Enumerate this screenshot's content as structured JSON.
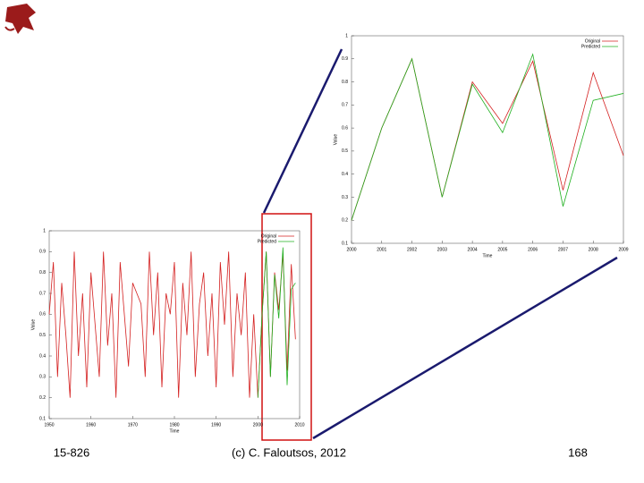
{
  "chart_data": [
    {
      "type": "line",
      "xlabel": "Time",
      "ylabel": "Value",
      "x": [
        2000,
        2001,
        2002,
        2003,
        2004,
        2005,
        2006,
        2007,
        2008,
        2009
      ],
      "series": [
        {
          "name": "Original",
          "color": "#d42020",
          "values": [
            0.2,
            0.6,
            0.9,
            0.3,
            0.8,
            0.62,
            0.89,
            0.33,
            0.84,
            0.48
          ]
        },
        {
          "name": "Predicted",
          "color": "#20b020",
          "values": [
            0.2,
            0.6,
            0.9,
            0.3,
            0.79,
            0.58,
            0.92,
            0.26,
            0.72,
            0.75
          ]
        }
      ],
      "xlim": [
        2000,
        2009
      ],
      "xticks": [
        2000,
        2001,
        2002,
        2003,
        2004,
        2005,
        2006,
        2007,
        2008,
        2009
      ],
      "ylim": [
        0.1,
        1
      ],
      "yticks": [
        0.1,
        0.2,
        0.3,
        0.4,
        0.5,
        0.6,
        0.7,
        0.8,
        0.9,
        1
      ],
      "legend": "upper right"
    },
    {
      "type": "line",
      "xlabel": "Time",
      "ylabel": "Value",
      "x": [
        1950,
        1951,
        1952,
        1953,
        1954,
        1955,
        1956,
        1957,
        1958,
        1959,
        1960,
        1961,
        1962,
        1963,
        1964,
        1965,
        1966,
        1967,
        1968,
        1969,
        1970,
        1971,
        1972,
        1973,
        1974,
        1975,
        1976,
        1977,
        1978,
        1979,
        1980,
        1981,
        1982,
        1983,
        1984,
        1985,
        1986,
        1987,
        1988,
        1989,
        1990,
        1991,
        1992,
        1993,
        1994,
        1995,
        1996,
        1997,
        1998,
        1999,
        2000,
        2001,
        2002,
        2003,
        2004,
        2005,
        2006,
        2007,
        2008,
        2009
      ],
      "series": [
        {
          "name": "Original",
          "color": "#d42020",
          "values": [
            0.6,
            0.85,
            0.3,
            0.75,
            0.5,
            0.2,
            0.9,
            0.4,
            0.7,
            0.25,
            0.8,
            0.55,
            0.3,
            0.9,
            0.45,
            0.7,
            0.2,
            0.85,
            0.6,
            0.35,
            0.75,
            0.7,
            0.65,
            0.3,
            0.9,
            0.5,
            0.8,
            0.25,
            0.7,
            0.6,
            0.85,
            0.2,
            0.75,
            0.5,
            0.9,
            0.3,
            0.65,
            0.8,
            0.4,
            0.7,
            0.25,
            0.85,
            0.55,
            0.9,
            0.3,
            0.7,
            0.5,
            0.8,
            0.2,
            0.6,
            0.2,
            0.6,
            0.9,
            0.3,
            0.8,
            0.62,
            0.89,
            0.33,
            0.84,
            0.48
          ]
        },
        {
          "name": "Predicted",
          "color": "#20b020",
          "values": [
            null,
            null,
            null,
            null,
            null,
            null,
            null,
            null,
            null,
            null,
            null,
            null,
            null,
            null,
            null,
            null,
            null,
            null,
            null,
            null,
            null,
            null,
            null,
            null,
            null,
            null,
            null,
            null,
            null,
            null,
            null,
            null,
            null,
            null,
            null,
            null,
            null,
            null,
            null,
            null,
            null,
            null,
            null,
            null,
            null,
            null,
            null,
            null,
            null,
            null,
            0.2,
            0.6,
            0.9,
            0.3,
            0.79,
            0.58,
            0.92,
            0.26,
            0.72,
            0.75
          ]
        }
      ],
      "xlim": [
        1950,
        2010
      ],
      "xticks": [
        1950,
        1960,
        1970,
        1980,
        1990,
        2000,
        2010
      ],
      "ylim": [
        0.1,
        1
      ],
      "yticks": [
        0.1,
        0.2,
        0.3,
        0.4,
        0.5,
        0.6,
        0.7,
        0.8,
        0.9,
        1
      ],
      "legend": "upper right"
    }
  ],
  "footer": {
    "left": "15-826",
    "center": "(c) C. Faloutsos, 2012",
    "right": "168"
  }
}
